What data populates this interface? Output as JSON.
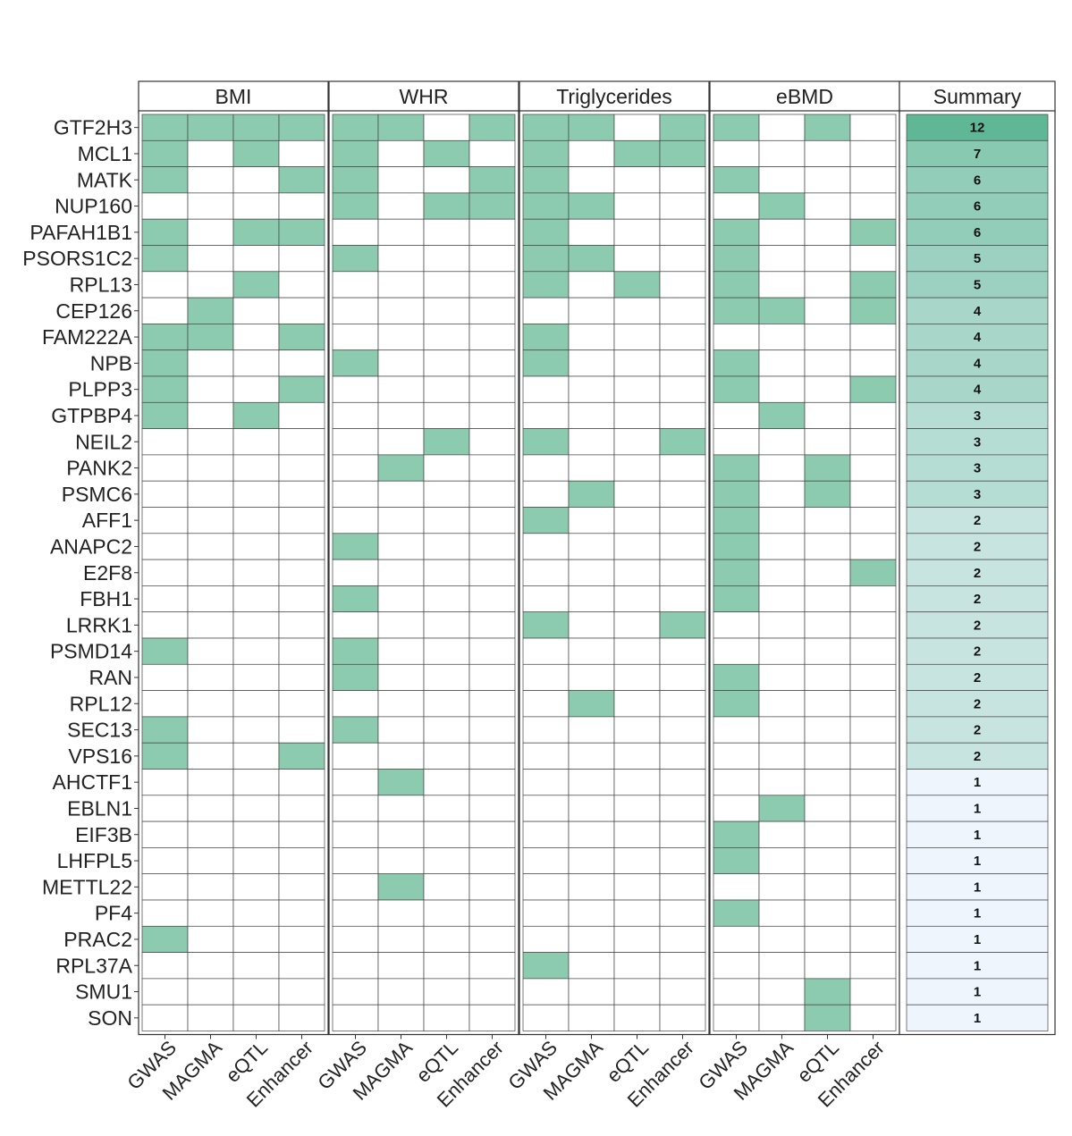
{
  "chart_data": {
    "type": "heatmap",
    "panels": [
      "BMI",
      "WHR",
      "Triglycerides",
      "eBMD"
    ],
    "summary_title": "Summary",
    "evidence_types": [
      "GWAS",
      "MAGMA",
      "eQTL",
      "Enhancer"
    ],
    "genes": [
      "GTF2H3",
      "MCL1",
      "MATK",
      "NUP160",
      "PAFAH1B1",
      "PSORS1C2",
      "RPL13",
      "CEP126",
      "FAM222A",
      "NPB",
      "PLPP3",
      "GTPBP4",
      "NEIL2",
      "PANK2",
      "PSMC6",
      "AFF1",
      "ANAPC2",
      "E2F8",
      "FBH1",
      "LRRK1",
      "PSMD14",
      "RAN",
      "RPL12",
      "SEC13",
      "VPS16",
      "AHCTF1",
      "EBLN1",
      "EIF3B",
      "LHFPL5",
      "METTL22",
      "PF4",
      "PRAC2",
      "RPL37A",
      "SMU1",
      "SON"
    ],
    "matrix": [
      [
        [
          1,
          1,
          1,
          1
        ],
        [
          1,
          1,
          0,
          1
        ],
        [
          1,
          1,
          0,
          1
        ],
        [
          1,
          0,
          1,
          0
        ]
      ],
      [
        [
          1,
          0,
          1,
          0
        ],
        [
          1,
          0,
          1,
          0
        ],
        [
          1,
          0,
          1,
          1
        ],
        [
          0,
          0,
          0,
          0
        ]
      ],
      [
        [
          1,
          0,
          0,
          1
        ],
        [
          1,
          0,
          0,
          1
        ],
        [
          1,
          0,
          0,
          0
        ],
        [
          1,
          0,
          0,
          0
        ]
      ],
      [
        [
          0,
          0,
          0,
          0
        ],
        [
          1,
          0,
          1,
          1
        ],
        [
          1,
          1,
          0,
          0
        ],
        [
          0,
          1,
          0,
          0
        ]
      ],
      [
        [
          1,
          0,
          1,
          1
        ],
        [
          0,
          0,
          0,
          0
        ],
        [
          1,
          0,
          0,
          0
        ],
        [
          1,
          0,
          0,
          1
        ]
      ],
      [
        [
          1,
          0,
          0,
          0
        ],
        [
          1,
          0,
          0,
          0
        ],
        [
          1,
          1,
          0,
          0
        ],
        [
          1,
          0,
          0,
          0
        ]
      ],
      [
        [
          0,
          0,
          1,
          0
        ],
        [
          0,
          0,
          0,
          0
        ],
        [
          1,
          0,
          1,
          0
        ],
        [
          1,
          0,
          0,
          1
        ]
      ],
      [
        [
          0,
          1,
          0,
          0
        ],
        [
          0,
          0,
          0,
          0
        ],
        [
          0,
          0,
          0,
          0
        ],
        [
          1,
          1,
          0,
          1
        ]
      ],
      [
        [
          1,
          1,
          0,
          1
        ],
        [
          0,
          0,
          0,
          0
        ],
        [
          1,
          0,
          0,
          0
        ],
        [
          0,
          0,
          0,
          0
        ]
      ],
      [
        [
          1,
          0,
          0,
          0
        ],
        [
          1,
          0,
          0,
          0
        ],
        [
          1,
          0,
          0,
          0
        ],
        [
          1,
          0,
          0,
          0
        ]
      ],
      [
        [
          1,
          0,
          0,
          1
        ],
        [
          0,
          0,
          0,
          0
        ],
        [
          0,
          0,
          0,
          0
        ],
        [
          1,
          0,
          0,
          1
        ]
      ],
      [
        [
          1,
          0,
          1,
          0
        ],
        [
          0,
          0,
          0,
          0
        ],
        [
          0,
          0,
          0,
          0
        ],
        [
          0,
          1,
          0,
          0
        ]
      ],
      [
        [
          0,
          0,
          0,
          0
        ],
        [
          0,
          0,
          1,
          0
        ],
        [
          1,
          0,
          0,
          1
        ],
        [
          0,
          0,
          0,
          0
        ]
      ],
      [
        [
          0,
          0,
          0,
          0
        ],
        [
          0,
          1,
          0,
          0
        ],
        [
          0,
          0,
          0,
          0
        ],
        [
          1,
          0,
          1,
          0
        ]
      ],
      [
        [
          0,
          0,
          0,
          0
        ],
        [
          0,
          0,
          0,
          0
        ],
        [
          0,
          1,
          0,
          0
        ],
        [
          1,
          0,
          1,
          0
        ]
      ],
      [
        [
          0,
          0,
          0,
          0
        ],
        [
          0,
          0,
          0,
          0
        ],
        [
          1,
          0,
          0,
          0
        ],
        [
          1,
          0,
          0,
          0
        ]
      ],
      [
        [
          0,
          0,
          0,
          0
        ],
        [
          1,
          0,
          0,
          0
        ],
        [
          0,
          0,
          0,
          0
        ],
        [
          1,
          0,
          0,
          0
        ]
      ],
      [
        [
          0,
          0,
          0,
          0
        ],
        [
          0,
          0,
          0,
          0
        ],
        [
          0,
          0,
          0,
          0
        ],
        [
          1,
          0,
          0,
          1
        ]
      ],
      [
        [
          0,
          0,
          0,
          0
        ],
        [
          1,
          0,
          0,
          0
        ],
        [
          0,
          0,
          0,
          0
        ],
        [
          1,
          0,
          0,
          0
        ]
      ],
      [
        [
          0,
          0,
          0,
          0
        ],
        [
          0,
          0,
          0,
          0
        ],
        [
          1,
          0,
          0,
          1
        ],
        [
          0,
          0,
          0,
          0
        ]
      ],
      [
        [
          1,
          0,
          0,
          0
        ],
        [
          1,
          0,
          0,
          0
        ],
        [
          0,
          0,
          0,
          0
        ],
        [
          0,
          0,
          0,
          0
        ]
      ],
      [
        [
          0,
          0,
          0,
          0
        ],
        [
          1,
          0,
          0,
          0
        ],
        [
          0,
          0,
          0,
          0
        ],
        [
          1,
          0,
          0,
          0
        ]
      ],
      [
        [
          0,
          0,
          0,
          0
        ],
        [
          0,
          0,
          0,
          0
        ],
        [
          0,
          1,
          0,
          0
        ],
        [
          1,
          0,
          0,
          0
        ]
      ],
      [
        [
          1,
          0,
          0,
          0
        ],
        [
          1,
          0,
          0,
          0
        ],
        [
          0,
          0,
          0,
          0
        ],
        [
          0,
          0,
          0,
          0
        ]
      ],
      [
        [
          1,
          0,
          0,
          1
        ],
        [
          0,
          0,
          0,
          0
        ],
        [
          0,
          0,
          0,
          0
        ],
        [
          0,
          0,
          0,
          0
        ]
      ],
      [
        [
          0,
          0,
          0,
          0
        ],
        [
          0,
          1,
          0,
          0
        ],
        [
          0,
          0,
          0,
          0
        ],
        [
          0,
          0,
          0,
          0
        ]
      ],
      [
        [
          0,
          0,
          0,
          0
        ],
        [
          0,
          0,
          0,
          0
        ],
        [
          0,
          0,
          0,
          0
        ],
        [
          0,
          1,
          0,
          0
        ]
      ],
      [
        [
          0,
          0,
          0,
          0
        ],
        [
          0,
          0,
          0,
          0
        ],
        [
          0,
          0,
          0,
          0
        ],
        [
          1,
          0,
          0,
          0
        ]
      ],
      [
        [
          0,
          0,
          0,
          0
        ],
        [
          0,
          0,
          0,
          0
        ],
        [
          0,
          0,
          0,
          0
        ],
        [
          1,
          0,
          0,
          0
        ]
      ],
      [
        [
          0,
          0,
          0,
          0
        ],
        [
          0,
          1,
          0,
          0
        ],
        [
          0,
          0,
          0,
          0
        ],
        [
          0,
          0,
          0,
          0
        ]
      ],
      [
        [
          0,
          0,
          0,
          0
        ],
        [
          0,
          0,
          0,
          0
        ],
        [
          0,
          0,
          0,
          0
        ],
        [
          1,
          0,
          0,
          0
        ]
      ],
      [
        [
          1,
          0,
          0,
          0
        ],
        [
          0,
          0,
          0,
          0
        ],
        [
          0,
          0,
          0,
          0
        ],
        [
          0,
          0,
          0,
          0
        ]
      ],
      [
        [
          0,
          0,
          0,
          0
        ],
        [
          0,
          0,
          0,
          0
        ],
        [
          1,
          0,
          0,
          0
        ],
        [
          0,
          0,
          0,
          0
        ]
      ],
      [
        [
          0,
          0,
          0,
          0
        ],
        [
          0,
          0,
          0,
          0
        ],
        [
          0,
          0,
          0,
          0
        ],
        [
          0,
          0,
          1,
          0
        ]
      ],
      [
        [
          0,
          0,
          0,
          0
        ],
        [
          0,
          0,
          0,
          0
        ],
        [
          0,
          0,
          0,
          0
        ],
        [
          0,
          0,
          1,
          0
        ]
      ]
    ],
    "summary": [
      12,
      7,
      6,
      6,
      6,
      5,
      5,
      4,
      4,
      4,
      4,
      3,
      3,
      3,
      3,
      2,
      2,
      2,
      2,
      2,
      2,
      2,
      2,
      2,
      2,
      1,
      1,
      1,
      1,
      1,
      1,
      1,
      1,
      1,
      1
    ],
    "colors": {
      "present": "#8ccbb0",
      "summary_low": "#eef5fc",
      "summary_high": "#5fb795",
      "grid": "#444444"
    },
    "legend": "none",
    "grid": true
  }
}
